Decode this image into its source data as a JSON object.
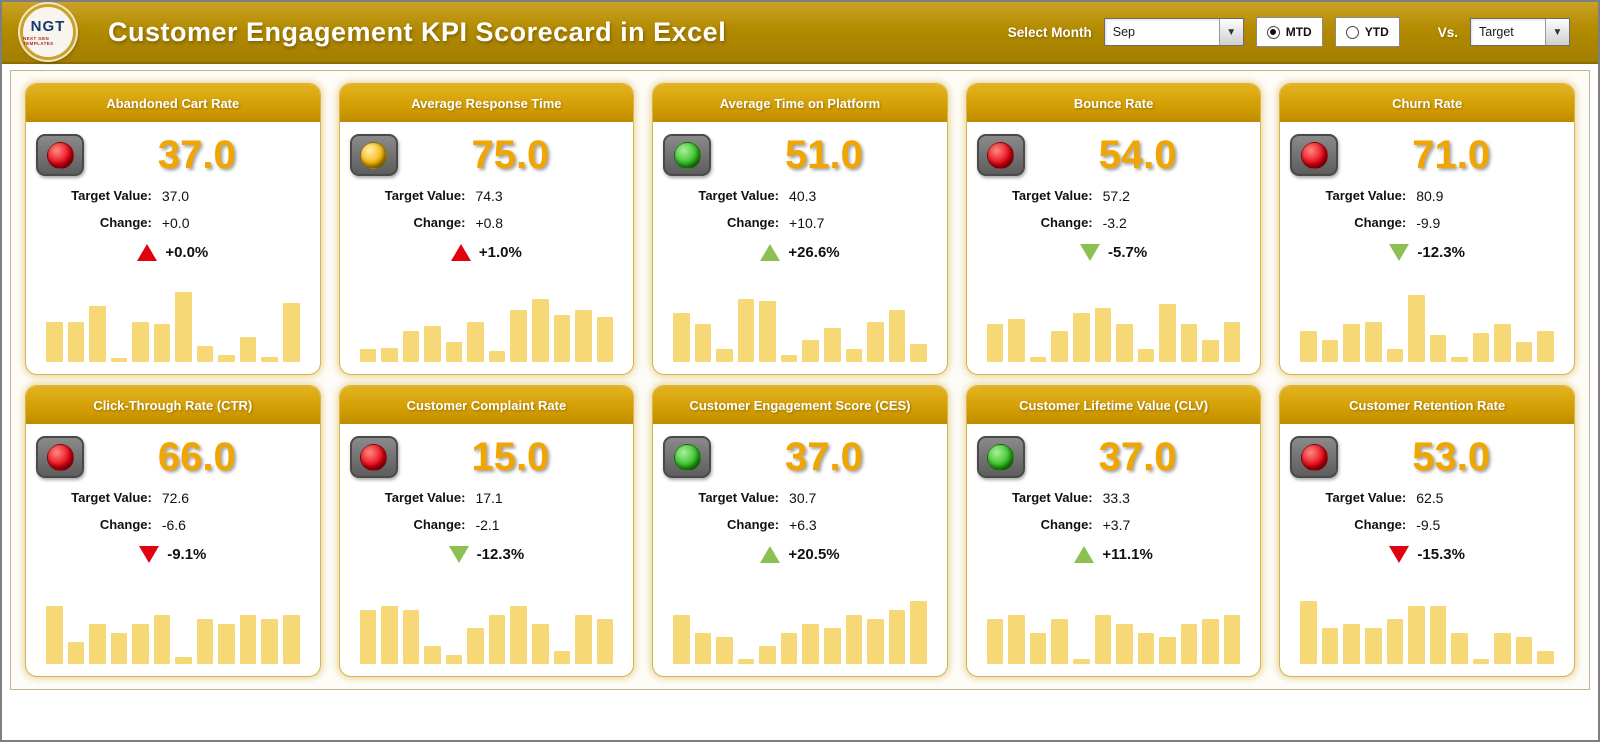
{
  "header": {
    "title": "Customer Engagement KPI Scorecard in Excel",
    "logo_text": "NGT",
    "logo_sub": "NEXT GEN TEMPLATES",
    "select_month_label": "Select Month",
    "month_value": "Sep",
    "mtd_label": "MTD",
    "ytd_label": "YTD",
    "vs_label": "Vs.",
    "vs_value": "Target"
  },
  "labels": {
    "target_value": "Target Value:",
    "change": "Change:"
  },
  "colors": {
    "gold_accent": "#cf9a00",
    "value_gold": "#f0a500",
    "bar_gold": "#f7d877",
    "red": "#e3000f",
    "green": "#8cc152"
  },
  "cards": [
    {
      "title": "Abandoned Cart Rate",
      "light": "red",
      "value": "37.0",
      "target": "37.0",
      "change": "+0.0",
      "pct": "+0.0%",
      "arrow": "up",
      "arrow_color": "red",
      "spark": [
        45,
        45,
        62,
        4,
        45,
        42,
        78,
        18,
        8,
        28,
        6,
        66
      ]
    },
    {
      "title": "Average Response Time",
      "light": "yellow",
      "value": "75.0",
      "target": "74.3",
      "change": "+0.8",
      "pct": "+1.0%",
      "arrow": "up",
      "arrow_color": "red",
      "spark": [
        14,
        16,
        34,
        40,
        22,
        45,
        12,
        58,
        70,
        52,
        58,
        50
      ]
    },
    {
      "title": "Average Time on Platform",
      "light": "green",
      "value": "51.0",
      "target": "40.3",
      "change": "+10.7",
      "pct": "+26.6%",
      "arrow": "up",
      "arrow_color": "green",
      "spark": [
        55,
        42,
        15,
        70,
        68,
        8,
        25,
        38,
        15,
        45,
        58,
        20
      ]
    },
    {
      "title": "Bounce Rate",
      "light": "red",
      "value": "54.0",
      "target": "57.2",
      "change": "-3.2",
      "pct": "-5.7%",
      "arrow": "down",
      "arrow_color": "green",
      "spark": [
        42,
        48,
        6,
        35,
        55,
        60,
        42,
        15,
        65,
        42,
        25,
        45
      ]
    },
    {
      "title": "Churn Rate",
      "light": "red",
      "value": "71.0",
      "target": "80.9",
      "change": "-9.9",
      "pct": "-12.3%",
      "arrow": "down",
      "arrow_color": "green",
      "spark": [
        35,
        25,
        42,
        45,
        15,
        75,
        30,
        6,
        32,
        42,
        22,
        35
      ]
    },
    {
      "title": "Click-Through Rate (CTR)",
      "light": "red",
      "value": "66.0",
      "target": "72.6",
      "change": "-6.6",
      "pct": "-9.1%",
      "arrow": "down",
      "arrow_color": "red",
      "spark": [
        65,
        25,
        45,
        35,
        45,
        55,
        8,
        50,
        45,
        55,
        50,
        55
      ]
    },
    {
      "title": "Customer Complaint Rate",
      "light": "red",
      "value": "15.0",
      "target": "17.1",
      "change": "-2.1",
      "pct": "-12.3%",
      "arrow": "down",
      "arrow_color": "green",
      "spark": [
        60,
        65,
        60,
        20,
        10,
        40,
        55,
        65,
        45,
        15,
        55,
        50
      ]
    },
    {
      "title": "Customer Engagement Score (CES)",
      "light": "green",
      "value": "37.0",
      "target": "30.7",
      "change": "+6.3",
      "pct": "+20.5%",
      "arrow": "up",
      "arrow_color": "green",
      "spark": [
        55,
        35,
        30,
        6,
        20,
        35,
        45,
        40,
        55,
        50,
        60,
        70
      ]
    },
    {
      "title": "Customer Lifetime Value (CLV)",
      "light": "green",
      "value": "37.0",
      "target": "33.3",
      "change": "+3.7",
      "pct": "+11.1%",
      "arrow": "up",
      "arrow_color": "green",
      "spark": [
        50,
        55,
        35,
        50,
        6,
        55,
        45,
        35,
        30,
        45,
        50,
        55
      ]
    },
    {
      "title": "Customer Retention Rate",
      "light": "red",
      "value": "53.0",
      "target": "62.5",
      "change": "-9.5",
      "pct": "-15.3%",
      "arrow": "down",
      "arrow_color": "red",
      "spark": [
        70,
        40,
        45,
        40,
        50,
        65,
        65,
        35,
        6,
        35,
        30,
        15
      ]
    }
  ]
}
